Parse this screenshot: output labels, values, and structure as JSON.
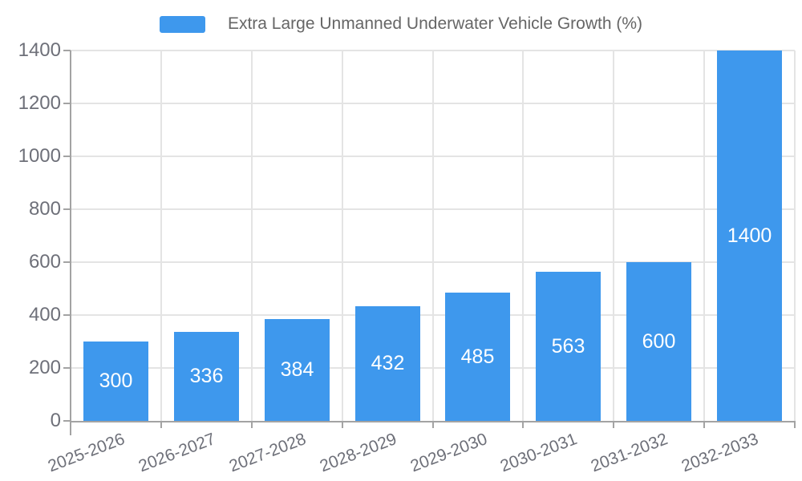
{
  "chart_data": {
    "type": "bar",
    "title": "Extra Large Unmanned Underwater Vehicle Growth (%)",
    "categories": [
      "2025-2026",
      "2026-2027",
      "2027-2028",
      "2028-2029",
      "2029-2030",
      "2030-2031",
      "2031-2032",
      "2032-2033"
    ],
    "values": [
      300,
      336,
      384,
      432,
      485,
      563,
      600,
      1400
    ],
    "series": [
      {
        "name": "Extra Large Unmanned Underwater Vehicle Growth (%)",
        "values": [
          300,
          336,
          384,
          432,
          485,
          563,
          600,
          1400
        ]
      }
    ],
    "value_labels": [
      "300",
      "336",
      "384",
      "432",
      "485",
      "563",
      "600",
      "1400"
    ],
    "xlabel": "",
    "ylabel": "",
    "ylim": [
      0,
      1400
    ],
    "y_ticks": [
      0,
      200,
      400,
      600,
      800,
      1000,
      1200,
      1400
    ],
    "grid": true,
    "legend_position": "top-center",
    "x_label_rotation_deg": -21
  },
  "legend": {
    "label": "Extra Large Unmanned Underwater Vehicle Growth (%)"
  },
  "colors": {
    "bar": "#3E98ED",
    "gridline": "#E4E4E4",
    "axis_line": "#A3A3A3",
    "axis_text": "#6E7079",
    "legend_text": "#666666",
    "bar_value_text": "#FFFFFF",
    "background": "#FFFFFF"
  }
}
